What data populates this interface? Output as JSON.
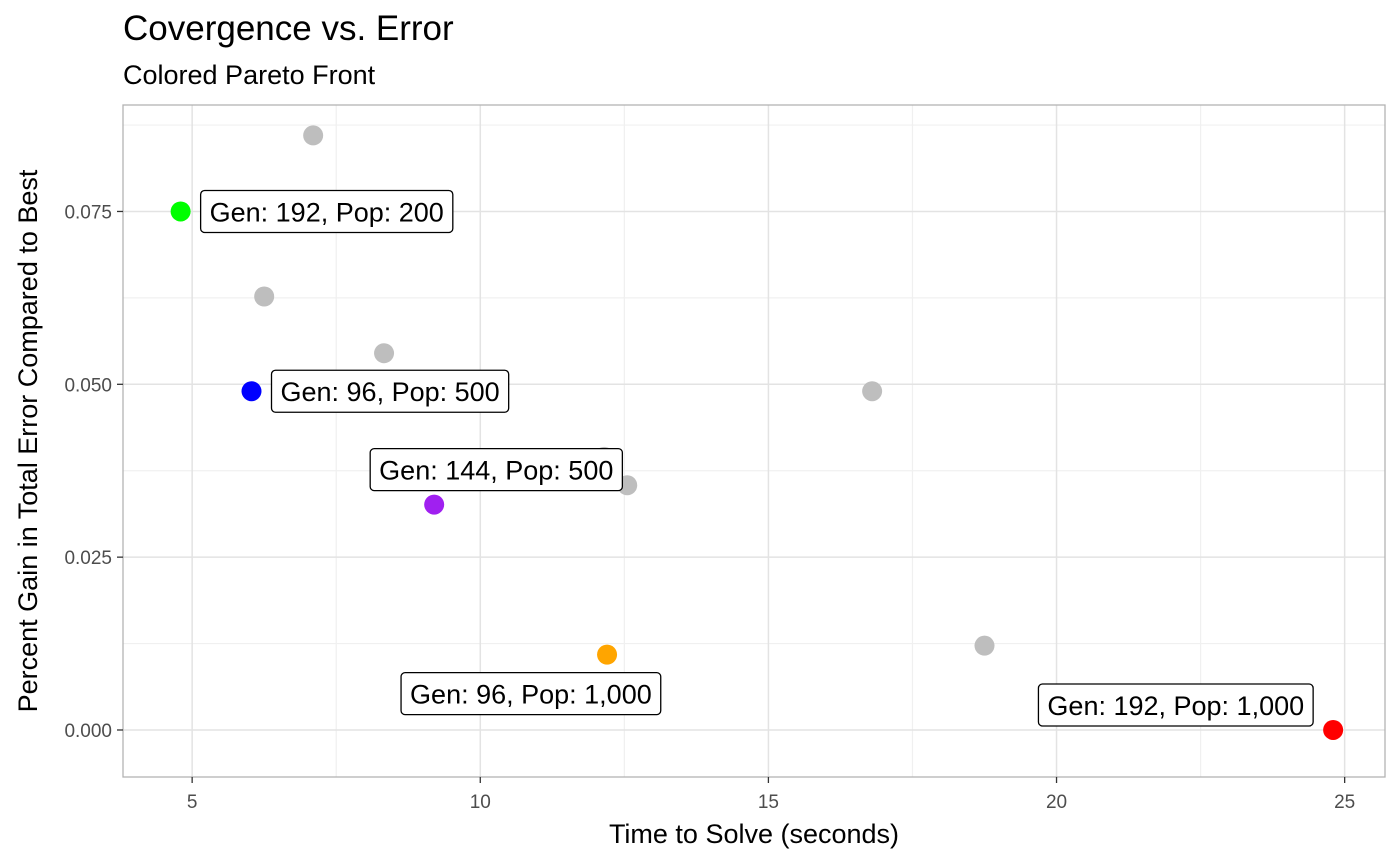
{
  "chart_data": {
    "type": "scatter",
    "title": "Covergence vs. Error",
    "subtitle": "Colored Pareto Front",
    "xlabel": "Time to Solve (seconds)",
    "ylabel": "Percent Gain in Total Error Compared to Best",
    "xlim": [
      3.8,
      25.7
    ],
    "ylim": [
      -0.0068,
      0.0904
    ],
    "x_ticks": [
      5,
      10,
      15,
      20,
      25
    ],
    "x_tick_labels": [
      "5",
      "10",
      "15",
      "20",
      "25"
    ],
    "y_ticks": [
      0,
      0.025,
      0.05,
      0.075
    ],
    "y_tick_labels": [
      "0.000",
      "0.025",
      "0.050",
      "0.075"
    ],
    "grid": true,
    "points": [
      {
        "x": 7.1,
        "y": 0.086,
        "color": "#bebebe"
      },
      {
        "x": 6.25,
        "y": 0.0627,
        "color": "#bebebe"
      },
      {
        "x": 8.33,
        "y": 0.0545,
        "color": "#bebebe"
      },
      {
        "x": 12.15,
        "y": 0.0395,
        "color": "#bebebe"
      },
      {
        "x": 12.55,
        "y": 0.0354,
        "color": "#bebebe"
      },
      {
        "x": 16.8,
        "y": 0.049,
        "color": "#bebebe"
      },
      {
        "x": 18.75,
        "y": 0.0122,
        "color": "#bebebe"
      },
      {
        "x": 4.8,
        "y": 0.075,
        "color": "#00ff00"
      },
      {
        "x": 6.03,
        "y": 0.049,
        "color": "#0000ff"
      },
      {
        "x": 9.2,
        "y": 0.0326,
        "color": "#a020f0"
      },
      {
        "x": 12.2,
        "y": 0.0109,
        "color": "#ffa500"
      },
      {
        "x": 24.8,
        "y": 0.0,
        "color": "#ff0000"
      }
    ],
    "annotations": [
      {
        "text": "Gen: 192, Pop: 200",
        "x": 4.8,
        "y": 0.075,
        "placement": "right"
      },
      {
        "text": "Gen: 96, Pop: 500",
        "x": 6.03,
        "y": 0.049,
        "placement": "right"
      },
      {
        "text": "Gen: 144, Pop: 500",
        "x": 9.2,
        "y": 0.0326,
        "placement": "above-right"
      },
      {
        "text": "Gen: 96, Pop: 1,000",
        "x": 12.2,
        "y": 0.0109,
        "placement": "below-left"
      },
      {
        "text": "Gen: 192, Pop: 1,000",
        "x": 24.8,
        "y": 0.0,
        "placement": "above-left"
      }
    ]
  }
}
